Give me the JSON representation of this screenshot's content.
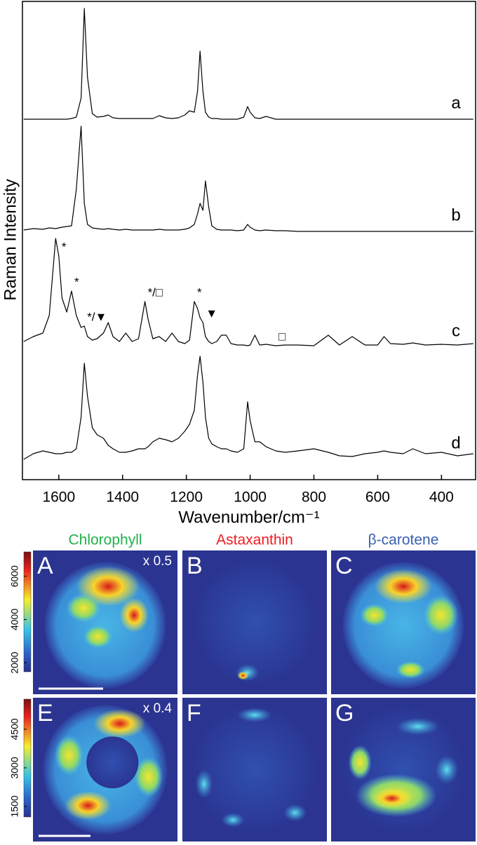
{
  "chart_data": [
    {
      "type": "line",
      "ylabel": "Raman Intensity",
      "xlabel": "Wavenumber/cm⁻¹",
      "xlim": [
        1714,
        293
      ],
      "xticks": [
        1600,
        1400,
        1200,
        1000,
        800,
        600,
        400
      ],
      "x": [
        1710,
        1680,
        1650,
        1630,
        1610,
        1600,
        1590,
        1575,
        1560,
        1545,
        1530,
        1520,
        1510,
        1495,
        1480,
        1460,
        1445,
        1430,
        1410,
        1390,
        1370,
        1350,
        1330,
        1320,
        1305,
        1285,
        1265,
        1245,
        1225,
        1205,
        1190,
        1175,
        1165,
        1157,
        1148,
        1140,
        1130,
        1120,
        1105,
        1090,
        1075,
        1060,
        1040,
        1020,
        1008,
        1000,
        985,
        970,
        950,
        920,
        890,
        850,
        800,
        755,
        720,
        680,
        640,
        600,
        580,
        560,
        520,
        490,
        450,
        400,
        350,
        300
      ],
      "series": [
        {
          "name": "a",
          "color": "#000000",
          "values": [
            0,
            0,
            0,
            0,
            0,
            0,
            0,
            0,
            1,
            3,
            30,
            158,
            60,
            8,
            3,
            4,
            6,
            2,
            1,
            1,
            1,
            1,
            1,
            1,
            1,
            5,
            2,
            1,
            2,
            6,
            12,
            10,
            40,
            97,
            40,
            10,
            3,
            1,
            1,
            0,
            0,
            0,
            0,
            3,
            18,
            10,
            2,
            1,
            4,
            0,
            0,
            0,
            0,
            0,
            0,
            0,
            0,
            0,
            0,
            0,
            0,
            0,
            0,
            0,
            0,
            0
          ]
        },
        {
          "name": "b",
          "color": "#000000",
          "values": [
            2,
            4,
            3,
            5,
            4,
            5,
            6,
            7,
            8,
            60,
            150,
            40,
            10,
            5,
            4,
            3,
            4,
            3,
            2,
            3,
            2,
            2,
            2,
            2,
            2,
            3,
            2,
            2,
            2,
            3,
            5,
            10,
            25,
            40,
            30,
            72,
            35,
            8,
            3,
            2,
            2,
            2,
            1,
            2,
            10,
            6,
            2,
            1,
            2,
            1,
            1,
            0,
            0,
            0,
            0,
            0,
            0,
            0,
            0,
            0,
            0,
            0,
            0,
            0,
            0,
            0
          ]
        },
        {
          "name": "c",
          "color": "#000000",
          "values": [
            8,
            15,
            20,
            45,
            155,
            130,
            70,
            50,
            80,
            45,
            28,
            30,
            15,
            10,
            12,
            20,
            35,
            15,
            8,
            20,
            8,
            12,
            65,
            40,
            12,
            15,
            8,
            20,
            8,
            5,
            10,
            65,
            55,
            42,
            35,
            15,
            8,
            5,
            8,
            17,
            17,
            5,
            3,
            3,
            2,
            3,
            17,
            3,
            4,
            2,
            3,
            3,
            2,
            17,
            3,
            15,
            3,
            3,
            15,
            5,
            4,
            6,
            3,
            4,
            3,
            5
          ],
          "annotations": [
            {
              "text": "*",
              "x": 1600
            },
            {
              "text": "*",
              "x": 1560
            },
            {
              "text": "*/▼",
              "x": 1520
            },
            {
              "text": "*/□",
              "x": 1330
            },
            {
              "text": "*",
              "x": 1175
            },
            {
              "text": "▼",
              "x": 1148
            },
            {
              "text": "□",
              "x": 920
            }
          ]
        },
        {
          "name": "d",
          "color": "#000000",
          "values": [
            0,
            8,
            12,
            10,
            8,
            8,
            8,
            10,
            10,
            15,
            60,
            137,
            90,
            45,
            35,
            30,
            20,
            15,
            10,
            10,
            12,
            15,
            15,
            18,
            25,
            30,
            28,
            25,
            30,
            40,
            50,
            70,
            120,
            147,
            110,
            60,
            30,
            22,
            18,
            15,
            15,
            12,
            10,
            15,
            82,
            55,
            25,
            25,
            18,
            12,
            10,
            12,
            15,
            10,
            5,
            4,
            8,
            10,
            12,
            10,
            8,
            15,
            8,
            10,
            5,
            8
          ]
        }
      ]
    },
    {
      "type": "heatmap",
      "label": "e",
      "columns": [
        {
          "title": "Chlorophyll",
          "color": "#22b14c"
        },
        {
          "title": "Astaxanthin",
          "color": "#ed1c24"
        },
        {
          "title": "β-carotene",
          "color": "#3b5fb0"
        }
      ],
      "rows": [
        {
          "panels": [
            "A",
            "B",
            "C"
          ],
          "scale_note": "x 0.5",
          "clim": [
            1580,
            7130
          ],
          "ticks": [
            2000,
            4000,
            6000
          ]
        },
        {
          "panels": [
            "E",
            "F",
            "G"
          ],
          "scale_note": "x 0.4",
          "clim": [
            1090,
            5670
          ],
          "ticks": [
            1500,
            3000,
            4500
          ]
        }
      ]
    }
  ]
}
